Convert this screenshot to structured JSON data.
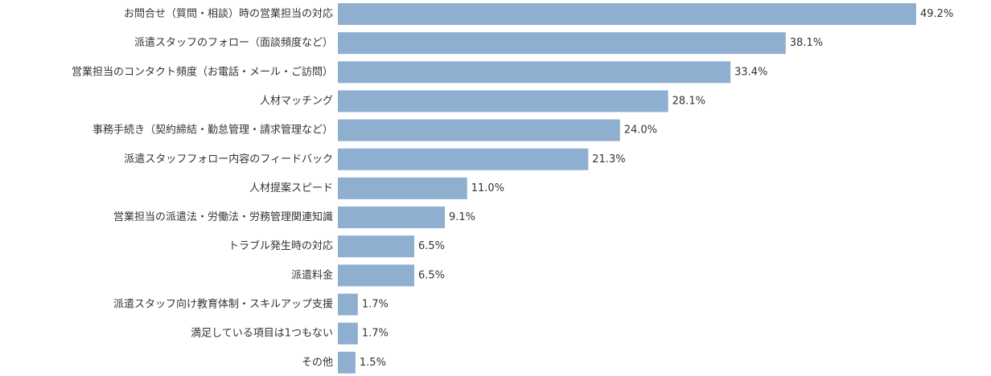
{
  "chart_data": {
    "type": "bar",
    "orientation": "horizontal",
    "title": "",
    "xlabel": "",
    "ylabel": "",
    "xlim": [
      0,
      49.2
    ],
    "grid": false,
    "legend": "none",
    "value_suffix": "%",
    "bar_color": "#8eafcf",
    "categories": [
      "お問合せ（質問・相談）時の営業担当の対応",
      "派遣スタッフのフォロー（面談頻度など）",
      "営業担当のコンタクト頻度（お電話・メール・ご訪問）",
      "人材マッチング",
      "事務手続き（契約締結・勤怠管理・請求管理など）",
      "派遣スタッフフォロー内容のフィードバック",
      "人材提案スピード",
      "営業担当の派遣法・労働法・労務管理関連知識",
      "トラブル発生時の対応",
      "派遣料金",
      "派遣スタッフ向け教育体制・スキルアップ支援",
      "満足している項目は1つもない",
      "その他"
    ],
    "values": [
      49.2,
      38.1,
      33.4,
      28.1,
      24.0,
      21.3,
      11.0,
      9.1,
      6.5,
      6.5,
      1.7,
      1.7,
      1.5
    ],
    "value_labels": [
      "49.2%",
      "38.1%",
      "33.4%",
      "28.1%",
      "24.0%",
      "21.3%",
      "11.0%",
      "9.1%",
      "6.5%",
      "6.5%",
      "1.7%",
      "1.7%",
      "1.5%"
    ]
  }
}
